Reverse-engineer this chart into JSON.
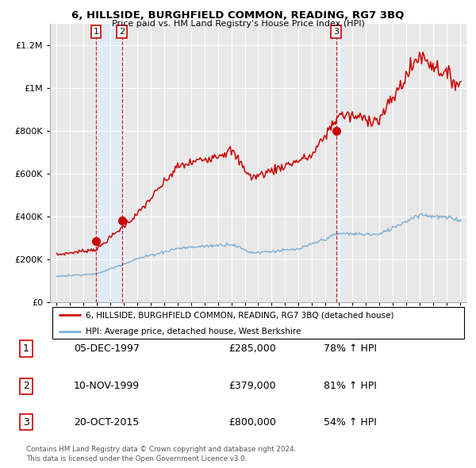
{
  "title": "6, HILLSIDE, BURGHFIELD COMMON, READING, RG7 3BQ",
  "subtitle": "Price paid vs. HM Land Registry's House Price Index (HPI)",
  "red_line_color": "#cc0000",
  "blue_line_color": "#7bafd4",
  "dashed_line_color": "#cc0000",
  "shade_color": "#ddeeff",
  "grid_color": "#ffffff",
  "plot_bg_color": "#e8e8e8",
  "sales": [
    {
      "label": 1,
      "year": 1997.92,
      "price": 285000,
      "date": "05-DEC-1997"
    },
    {
      "label": 2,
      "year": 1999.86,
      "price": 379000,
      "date": "10-NOV-1999"
    },
    {
      "label": 3,
      "year": 2015.8,
      "price": 800000,
      "date": "20-OCT-2015"
    }
  ],
  "legend_entries": [
    "6, HILLSIDE, BURGHFIELD COMMON, READING, RG7 3BQ (detached house)",
    "HPI: Average price, detached house, West Berkshire"
  ],
  "table_rows": [
    {
      "num": 1,
      "date": "05-DEC-1997",
      "price": "£285,000",
      "hpi": "78% ↑ HPI"
    },
    {
      "num": 2,
      "date": "10-NOV-1999",
      "price": "£379,000",
      "hpi": "81% ↑ HPI"
    },
    {
      "num": 3,
      "date": "20-OCT-2015",
      "price": "£800,000",
      "hpi": "54% ↑ HPI"
    }
  ],
  "footer": "Contains HM Land Registry data © Crown copyright and database right 2024.\nThis data is licensed under the Open Government Licence v3.0.",
  "ylim": [
    0,
    1300000
  ],
  "xlim_start": 1994.5,
  "xlim_end": 2025.5,
  "yticks": [
    0,
    200000,
    400000,
    600000,
    800000,
    1000000,
    1200000
  ],
  "xtick_start": 1995,
  "xtick_end": 2025
}
